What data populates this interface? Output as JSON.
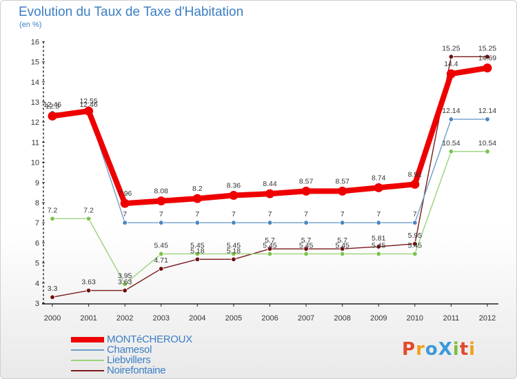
{
  "title": "Evolution du Taux de Taxe d'Habitation",
  "unit": "(en %)",
  "logo": "ProXiti",
  "chart_data": {
    "type": "line",
    "title": "Evolution du Taux de Taxe d'Habitation",
    "ylabel": "(en %)",
    "xlabel": "",
    "x": [
      "2000",
      "2001",
      "2002",
      "2003",
      "2004",
      "2005",
      "2006",
      "2007",
      "2008",
      "2009",
      "2010",
      "2011",
      "2012"
    ],
    "ylim": [
      3,
      16
    ],
    "yticks": [
      3,
      4,
      5,
      6,
      7,
      8,
      9,
      10,
      11,
      12,
      13,
      14,
      15,
      16
    ],
    "grid": false,
    "series": [
      {
        "name": "Noirefontaine",
        "color": "#7a1818",
        "dot": "#6e1010",
        "values": [
          3.3,
          3.63,
          3.63,
          4.71,
          5.18,
          5.18,
          5.7,
          5.7,
          5.7,
          5.81,
          5.95,
          15.25,
          15.25
        ],
        "labels": [
          "3.3",
          "3.63",
          "3.63",
          "4.71",
          "5.18",
          "5.18",
          "5.7",
          "5.7",
          "5.7",
          "5.81",
          "5.95",
          "15.25",
          "15.25"
        ]
      },
      {
        "name": "Liebvillers",
        "color": "#9ad27a",
        "dot": "#7cc24a",
        "values": [
          7.2,
          7.2,
          3.95,
          5.45,
          5.45,
          5.45,
          5.45,
          5.45,
          5.45,
          5.45,
          5.45,
          10.54,
          10.54
        ],
        "labels": [
          "7.2",
          "7.2",
          "3.95",
          "5.45",
          "5.45",
          "5.45",
          "5.45",
          "5.45",
          "5.45",
          "5.45",
          "5.45",
          "10.54",
          "10.54"
        ]
      },
      {
        "name": "Chamesol",
        "color": "#6a9ec9",
        "dot": "#4a86c0",
        "values": [
          12.46,
          12.46,
          7,
          7,
          7,
          7,
          7,
          7,
          7,
          7,
          7,
          12.14,
          12.14
        ],
        "labels": [
          "12.46",
          "12.46",
          "7",
          "7",
          "7",
          "7",
          "7",
          "7",
          "7",
          "7",
          "7",
          "12.14",
          "12.14"
        ]
      },
      {
        "name": "MONTéCHEROUX",
        "color": "#ee0000",
        "dot": "#ee0000",
        "values": [
          12.3,
          12.55,
          7.96,
          8.08,
          8.2,
          8.36,
          8.44,
          8.57,
          8.57,
          8.74,
          8.91,
          14.4,
          14.69
        ],
        "labels": [
          "12.3",
          "12.55",
          "7.96",
          "8.08",
          "8.2",
          "8.36",
          "8.44",
          "8.57",
          "8.57",
          "8.74",
          "8.91",
          "14.4",
          "14.69"
        ]
      }
    ],
    "legend": [
      "MONTéCHEROUX",
      "Chamesol",
      "Liebvillers",
      "Noirefontaine"
    ]
  }
}
